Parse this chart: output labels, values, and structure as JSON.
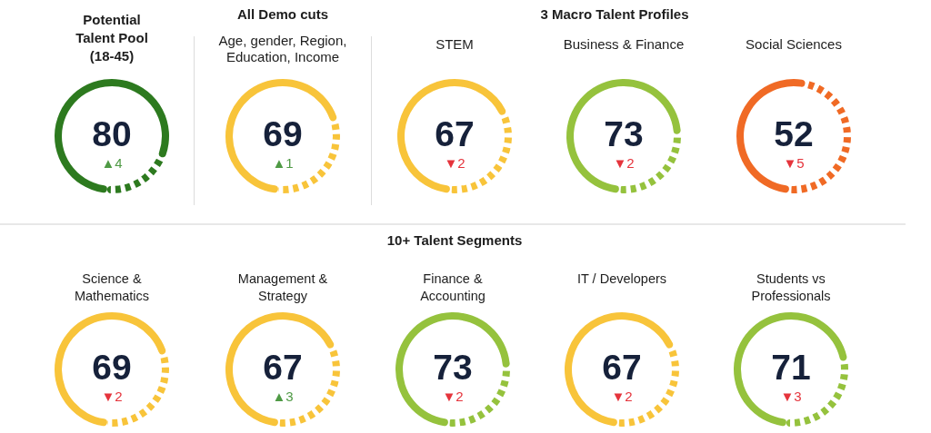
{
  "chart_data": [
    {
      "type": "donut",
      "title": "Potential Talent Pool (18-45)",
      "categories": [
        null,
        null
      ],
      "values": [
        80,
        20
      ],
      "colors": [
        "#2d7a1f",
        "#2d7a1f"
      ],
      "value_labels": [
        "80",
        null
      ],
      "annotations": [
        "▲4"
      ]
    },
    {
      "type": "donut",
      "title": "All Demo cuts",
      "subtitle": "Age, gender, Region, Education, Income",
      "categories": [
        null,
        null
      ],
      "values": [
        69,
        31
      ],
      "colors": [
        "#f8c43a",
        "#f8c43a"
      ],
      "value_labels": [
        "69",
        null
      ],
      "annotations": [
        "▲1"
      ]
    },
    {
      "type": "other",
      "title": "3 Macro Talent Profiles"
    },
    {
      "type": "donut",
      "title": "STEM",
      "categories": [
        null,
        null
      ],
      "values": [
        67,
        33
      ],
      "colors": [
        "#f8c43a",
        "#f8c43a"
      ],
      "value_labels": [
        "67",
        null
      ],
      "annotations": [
        "▼2"
      ]
    },
    {
      "type": "donut",
      "title": "Business & Finance",
      "categories": [
        null,
        null
      ],
      "values": [
        73,
        27
      ],
      "colors": [
        "#95c23d",
        "#95c23d"
      ],
      "value_labels": [
        "73",
        null
      ],
      "annotations": [
        "▼2"
      ]
    },
    {
      "type": "donut",
      "title": "Social Sciences",
      "categories": [
        null,
        null
      ],
      "values": [
        52,
        48
      ],
      "colors": [
        "#f06a25",
        "#f06a25"
      ],
      "value_labels": [
        "52",
        null
      ],
      "annotations": [
        "▼5"
      ]
    },
    {
      "type": "other",
      "title": "10+ Talent Segments"
    },
    {
      "type": "donut",
      "title": "Science & Mathematics",
      "categories": [
        null,
        null
      ],
      "values": [
        69,
        31
      ],
      "colors": [
        "#f8c43a",
        "#f8c43a"
      ],
      "value_labels": [
        "69",
        null
      ],
      "annotations": [
        "▼2"
      ]
    },
    {
      "type": "donut",
      "title": "Management & Strategy",
      "categories": [
        null,
        null
      ],
      "values": [
        67,
        33
      ],
      "colors": [
        "#f8c43a",
        "#f8c43a"
      ],
      "value_labels": [
        "67",
        null
      ],
      "annotations": [
        "▲3"
      ]
    },
    {
      "type": "donut",
      "title": "Finance & Accounting",
      "categories": [
        null,
        null
      ],
      "values": [
        73,
        27
      ],
      "colors": [
        "#95c23d",
        "#95c23d"
      ],
      "value_labels": [
        "73",
        null
      ],
      "annotations": [
        "▼2"
      ]
    },
    {
      "type": "donut",
      "title": "IT / Developers",
      "categories": [
        null,
        null
      ],
      "values": [
        67,
        33
      ],
      "colors": [
        "#f8c43a",
        "#f8c43a"
      ],
      "value_labels": [
        "67",
        null
      ],
      "annotations": [
        "▼2"
      ]
    },
    {
      "type": "donut",
      "title": "Students vs Professionals",
      "categories": [
        null,
        null
      ],
      "values": [
        71,
        29
      ],
      "colors": [
        "#95c23d",
        "#95c23d"
      ],
      "value_labels": [
        "71",
        null
      ],
      "annotations": [
        "▼3"
      ]
    }
  ]
}
